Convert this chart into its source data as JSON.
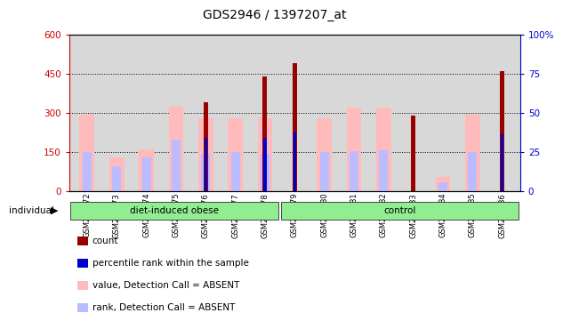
{
  "title": "GDS2946 / 1397207_at",
  "samples": [
    "GSM215572",
    "GSM215573",
    "GSM215574",
    "GSM215575",
    "GSM215576",
    "GSM215577",
    "GSM215578",
    "GSM215579",
    "GSM215580",
    "GSM215581",
    "GSM215582",
    "GSM215583",
    "GSM215584",
    "GSM215585",
    "GSM215586"
  ],
  "count_values": [
    0,
    0,
    0,
    0,
    340,
    0,
    440,
    490,
    0,
    0,
    0,
    290,
    0,
    0,
    460
  ],
  "percentile_rank_left": [
    0,
    0,
    0,
    0,
    205,
    0,
    205,
    230,
    0,
    0,
    0,
    0,
    0,
    0,
    220
  ],
  "absent_value": [
    295,
    130,
    160,
    325,
    280,
    280,
    280,
    0,
    280,
    320,
    320,
    0,
    55,
    295,
    0
  ],
  "absent_rank": [
    150,
    95,
    130,
    200,
    145,
    150,
    145,
    0,
    150,
    155,
    158,
    0,
    35,
    150,
    0
  ],
  "left_ylim": [
    0,
    600
  ],
  "right_ylim": [
    0,
    100
  ],
  "left_yticks": [
    0,
    150,
    300,
    450,
    600
  ],
  "right_yticks": [
    0,
    25,
    50,
    75,
    100
  ],
  "right_yticklabels": [
    "0",
    "25",
    "50",
    "75",
    "100%"
  ],
  "dotted_lines": [
    150,
    300,
    450
  ],
  "color_count": "#990000",
  "color_percentile": "#0000cc",
  "color_absent_value": "#ffbbbb",
  "color_absent_rank": "#bbbbff",
  "color_group_bg": "#lightgreen",
  "bg_color": "#d8d8d8",
  "group_labels": [
    "diet-induced obese",
    "control"
  ],
  "group_sizes": [
    7,
    8
  ],
  "legend_items": [
    "count",
    "percentile rank within the sample",
    "value, Detection Call = ABSENT",
    "rank, Detection Call = ABSENT"
  ],
  "legend_colors": [
    "#990000",
    "#0000cc",
    "#ffbbbb",
    "#bbbbff"
  ]
}
